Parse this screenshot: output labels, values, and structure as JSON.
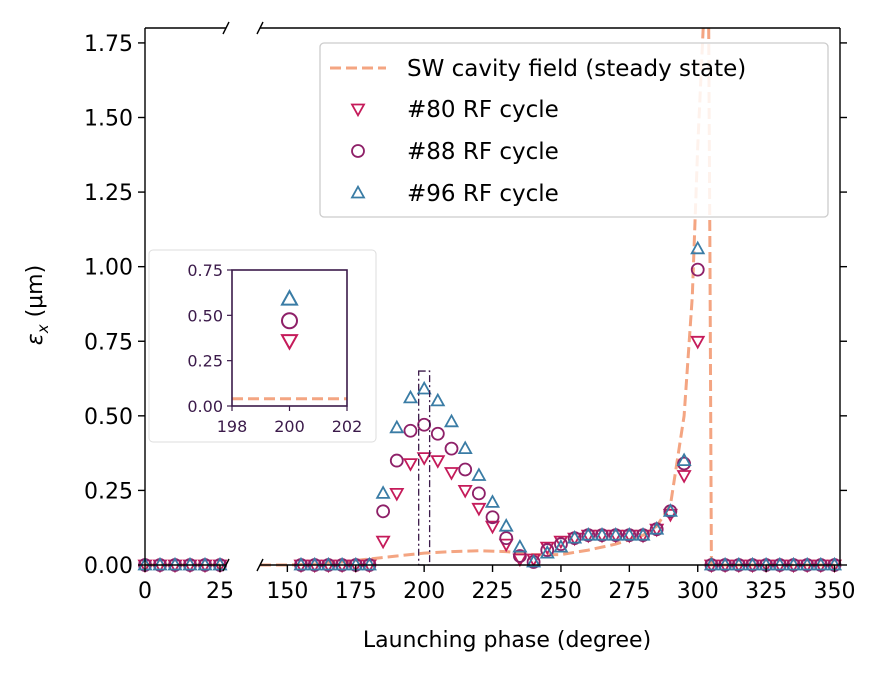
{
  "chart_data": {
    "type": "scatter",
    "title": "",
    "xlabel": "Launching phase (degree)",
    "ylabel_prefix": "ε",
    "ylabel_sub": "x",
    "ylabel_suffix": " (μm)",
    "ylim": [
      0,
      1.8
    ],
    "x_segments": [
      {
        "range": [
          0,
          27
        ],
        "ticks": [
          0,
          25
        ]
      },
      {
        "range": [
          140,
          352
        ],
        "ticks": [
          150,
          175,
          200,
          225,
          250,
          275,
          300,
          325,
          350
        ]
      }
    ],
    "y_ticks": [
      0.0,
      0.25,
      0.5,
      0.75,
      1.0,
      1.25,
      1.5,
      1.75
    ],
    "y_tick_labels": [
      "0.00",
      "0.25",
      "0.50",
      "0.75",
      "1.00",
      "1.25",
      "1.50",
      "1.75"
    ],
    "x_tick_labels": [
      "0",
      "25",
      "150",
      "175",
      "200",
      "225",
      "250",
      "275",
      "300",
      "325",
      "350"
    ],
    "legend_position": "upper-right",
    "colors": {
      "cavity": "#f4a582",
      "rf80": "#c51b5a",
      "rf88": "#8e2068",
      "rf96": "#3a7ca5",
      "inset_frame": "#3b1a4a"
    },
    "series": [
      {
        "name": "SW cavity field (steady state)",
        "kind": "line",
        "x": [
          0,
          27,
          140,
          150,
          160,
          170,
          180,
          190,
          200,
          210,
          220,
          230,
          240,
          250,
          260,
          270,
          280,
          285,
          290,
          295,
          298,
          300,
          302,
          303,
          304,
          304.5,
          305,
          310,
          320,
          330,
          340,
          350
        ],
        "y": [
          0,
          0,
          0,
          0,
          0.003,
          0.01,
          0.02,
          0.03,
          0.04,
          0.045,
          0.048,
          0.045,
          0.035,
          0.035,
          0.05,
          0.07,
          0.1,
          0.13,
          0.2,
          0.5,
          0.9,
          1.4,
          1.8,
          1.8,
          1.8,
          1.0,
          0,
          0,
          0,
          0,
          0,
          0
        ]
      },
      {
        "name": "#80 RF cycle",
        "kind": "marker",
        "marker": "triangle-down",
        "x": [
          0,
          5,
          10,
          15,
          20,
          25,
          155,
          160,
          165,
          170,
          175,
          180,
          185,
          190,
          195,
          200,
          205,
          210,
          215,
          220,
          225,
          230,
          235,
          240,
          245,
          250,
          255,
          260,
          265,
          270,
          275,
          280,
          285,
          290,
          295,
          300,
          305,
          310,
          315,
          320,
          325,
          330,
          335,
          340,
          345,
          350
        ],
        "y": [
          0,
          0,
          0,
          0,
          0,
          0,
          0,
          0,
          0,
          0,
          0,
          0,
          0.08,
          0.24,
          0.34,
          0.36,
          0.35,
          0.31,
          0.25,
          0.19,
          0.13,
          0.07,
          0.02,
          0.02,
          0.06,
          0.08,
          0.09,
          0.1,
          0.1,
          0.1,
          0.1,
          0.1,
          0.12,
          0.17,
          0.3,
          0.75,
          0,
          0,
          0,
          0,
          0,
          0,
          0,
          0,
          0,
          0
        ]
      },
      {
        "name": "#88 RF cycle",
        "kind": "marker",
        "marker": "circle",
        "x": [
          0,
          5,
          10,
          15,
          20,
          25,
          155,
          160,
          165,
          170,
          175,
          180,
          185,
          190,
          195,
          200,
          205,
          210,
          215,
          220,
          225,
          230,
          235,
          240,
          245,
          250,
          255,
          260,
          265,
          270,
          275,
          280,
          285,
          290,
          295,
          300,
          305,
          310,
          315,
          320,
          325,
          330,
          335,
          340,
          345,
          350
        ],
        "y": [
          0,
          0,
          0,
          0,
          0,
          0,
          0,
          0,
          0,
          0,
          0,
          0,
          0.18,
          0.35,
          0.45,
          0.47,
          0.44,
          0.39,
          0.32,
          0.24,
          0.16,
          0.09,
          0.03,
          0.01,
          0.05,
          0.07,
          0.09,
          0.1,
          0.1,
          0.1,
          0.1,
          0.1,
          0.12,
          0.18,
          0.34,
          0.99,
          0,
          0,
          0,
          0,
          0,
          0,
          0,
          0,
          0,
          0
        ]
      },
      {
        "name": "#96 RF cycle",
        "kind": "marker",
        "marker": "triangle-up",
        "x": [
          0,
          5,
          10,
          15,
          20,
          25,
          155,
          160,
          165,
          170,
          175,
          180,
          185,
          190,
          195,
          200,
          205,
          210,
          215,
          220,
          225,
          230,
          235,
          240,
          245,
          250,
          255,
          260,
          265,
          270,
          275,
          280,
          285,
          290,
          295,
          300,
          305,
          310,
          315,
          320,
          325,
          330,
          335,
          340,
          345,
          350
        ],
        "y": [
          0,
          0,
          0,
          0,
          0,
          0,
          0,
          0,
          0,
          0,
          0,
          0,
          0.24,
          0.46,
          0.56,
          0.59,
          0.55,
          0.48,
          0.39,
          0.3,
          0.21,
          0.13,
          0.06,
          0.01,
          0.04,
          0.06,
          0.09,
          0.1,
          0.1,
          0.1,
          0.1,
          0.1,
          0.12,
          0.18,
          0.35,
          1.06,
          0,
          0,
          0,
          0,
          0,
          0,
          0,
          0,
          0,
          0
        ]
      }
    ],
    "highlight_box": {
      "x": [
        198,
        202
      ],
      "y": [
        0,
        0.65
      ]
    },
    "inset": {
      "xlim": [
        198,
        202
      ],
      "ylim": [
        0,
        0.75
      ],
      "x_ticks": [
        198,
        200,
        202
      ],
      "x_tick_labels": [
        "198",
        "200",
        "202"
      ],
      "y_ticks": [
        0,
        0.25,
        0.5,
        0.75
      ],
      "y_tick_labels": [
        "0.00",
        "0.25",
        "0.50",
        "0.75"
      ],
      "points": [
        {
          "series": "#80 RF cycle",
          "x": 200,
          "y": 0.36
        },
        {
          "series": "#88 RF cycle",
          "x": 200,
          "y": 0.47
        },
        {
          "series": "#96 RF cycle",
          "x": 200,
          "y": 0.59
        }
      ],
      "cavity_level": 0.04
    }
  }
}
